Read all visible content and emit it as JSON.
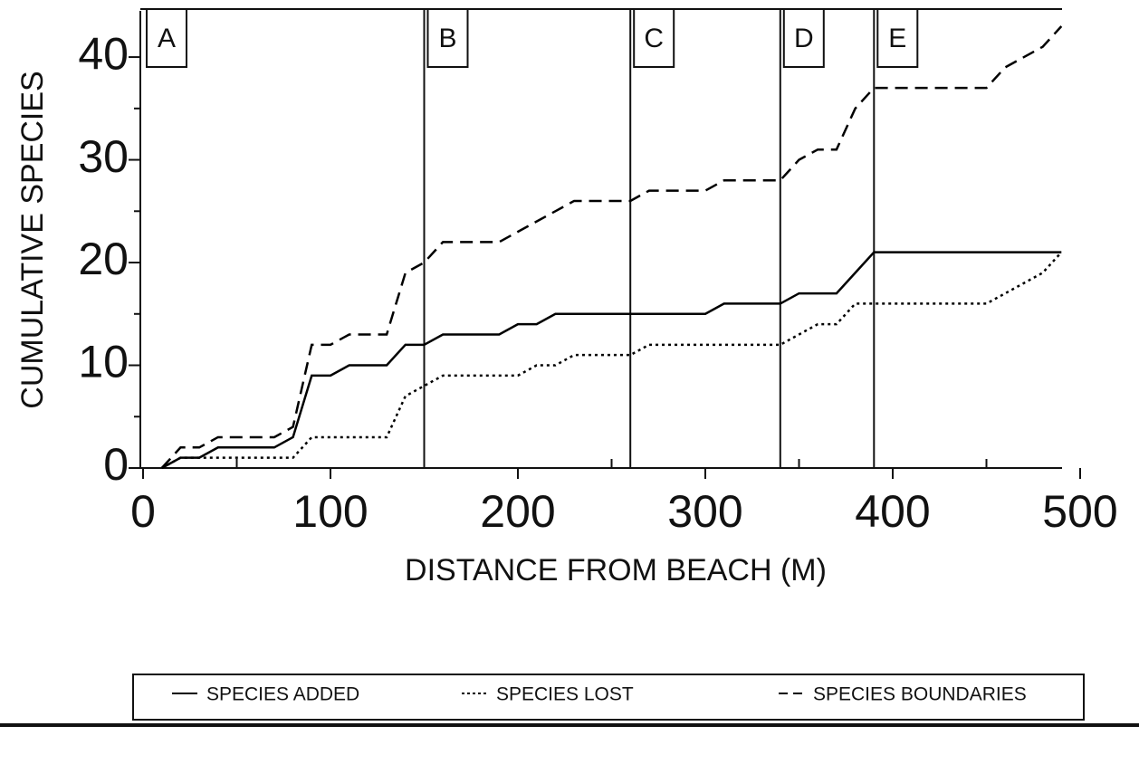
{
  "chart_data": {
    "type": "line",
    "xlabel": "DISTANCE FROM BEACH (M)",
    "ylabel": "CUMULATIVE SPECIES",
    "x": [
      10,
      20,
      30,
      40,
      50,
      60,
      70,
      80,
      90,
      100,
      110,
      120,
      130,
      140,
      150,
      160,
      170,
      180,
      190,
      200,
      210,
      220,
      230,
      240,
      250,
      260,
      270,
      280,
      290,
      300,
      310,
      320,
      330,
      340,
      350,
      360,
      370,
      380,
      390,
      400,
      410,
      420,
      430,
      440,
      450,
      460,
      470,
      480,
      490
    ],
    "series": [
      {
        "name": "SPECIES ADDED",
        "color": "#000000",
        "style": "solid",
        "values": [
          0,
          1,
          1,
          2,
          2,
          2,
          2,
          3,
          9,
          9,
          10,
          10,
          10,
          12,
          12,
          13,
          13,
          13,
          13,
          14,
          14,
          15,
          15,
          15,
          15,
          15,
          15,
          15,
          15,
          15,
          16,
          16,
          16,
          16,
          17,
          17,
          17,
          19,
          21,
          21,
          21,
          21,
          21,
          21,
          21,
          21,
          21,
          21,
          21
        ]
      },
      {
        "name": "SPECIES LOST",
        "color": "#000000",
        "style": "dotted",
        "values": [
          0,
          1,
          1,
          1,
          1,
          1,
          1,
          1,
          3,
          3,
          3,
          3,
          3,
          7,
          8,
          9,
          9,
          9,
          9,
          9,
          10,
          10,
          11,
          11,
          11,
          11,
          12,
          12,
          12,
          12,
          12,
          12,
          12,
          12,
          13,
          14,
          14,
          16,
          16,
          16,
          16,
          16,
          16,
          16,
          16,
          17,
          18,
          19,
          21
        ]
      },
      {
        "name": "SPECIES BOUNDARIES",
        "color": "#000000",
        "style": "dashed",
        "values": [
          0,
          2,
          2,
          3,
          3,
          3,
          3,
          4,
          12,
          12,
          13,
          13,
          13,
          19,
          20,
          22,
          22,
          22,
          22,
          23,
          24,
          25,
          26,
          26,
          26,
          26,
          27,
          27,
          27,
          27,
          28,
          28,
          28,
          28,
          30,
          31,
          31,
          35,
          37,
          37,
          37,
          37,
          37,
          37,
          37,
          39,
          40,
          41,
          43
        ]
      }
    ],
    "zones": [
      {
        "label": "A",
        "x": 0
      },
      {
        "label": "B",
        "x": 150
      },
      {
        "label": "C",
        "x": 260
      },
      {
        "label": "D",
        "x": 340
      },
      {
        "label": "E",
        "x": 390
      }
    ],
    "xlim": [
      0,
      500
    ],
    "xticks": [
      0,
      100,
      200,
      300,
      400,
      500
    ],
    "xminor": [
      50,
      150,
      250,
      350,
      450
    ],
    "ylim": [
      0,
      44.5
    ],
    "yticks": [
      0,
      10,
      20,
      30,
      40
    ],
    "yminor": [
      5,
      15,
      25,
      35
    ],
    "grid": false
  }
}
